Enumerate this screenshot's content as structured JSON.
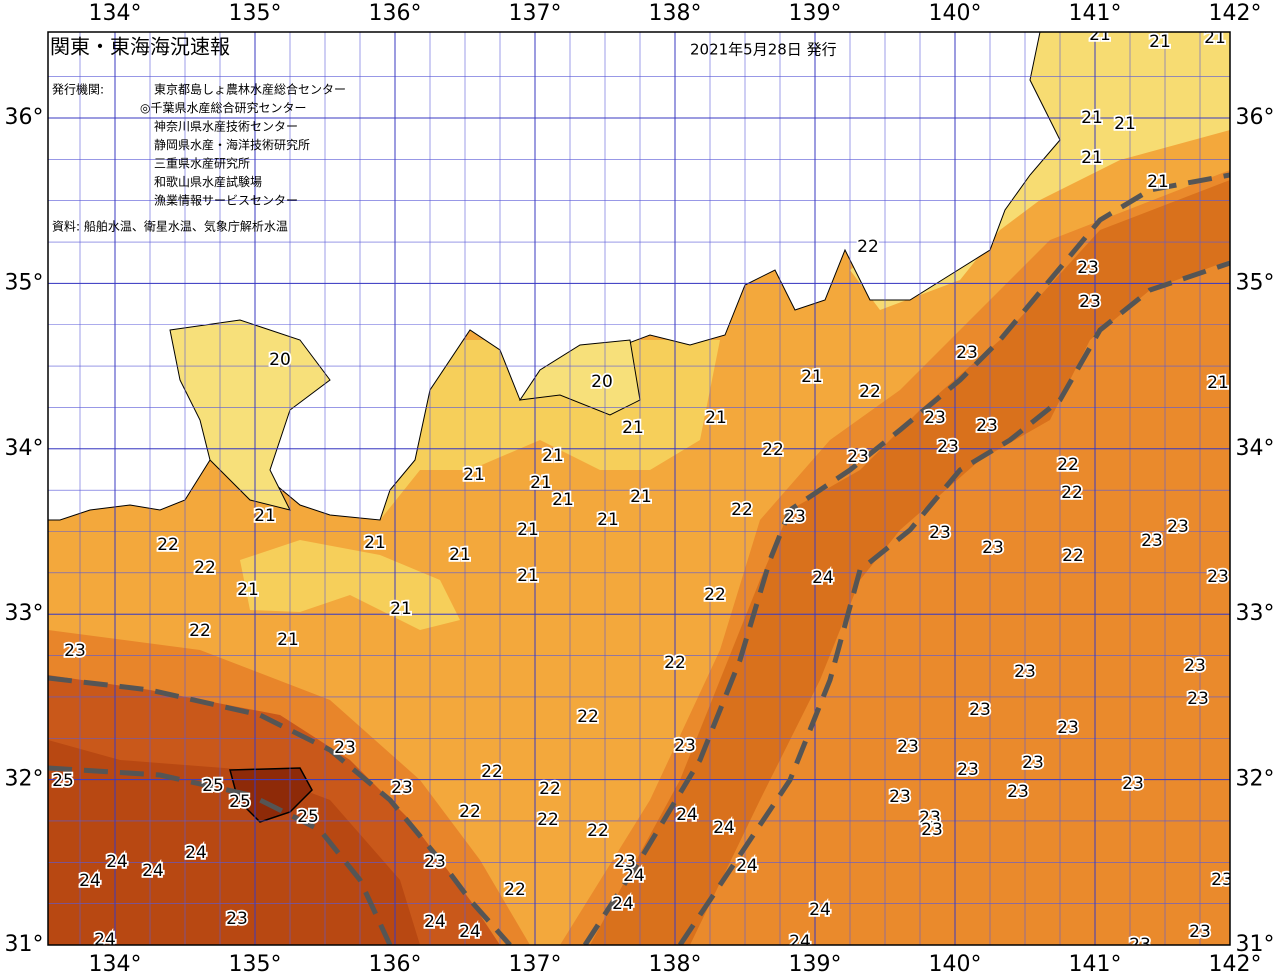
{
  "header": {
    "title": "関東・東海海況速報",
    "date": "2021年5月28日 発行",
    "issuer_label": "発行機関:",
    "issuers": [
      "東京都島しょ農林水産総合センター",
      "◎千葉県水産総合研究センター",
      "神奈川県水産技術センター",
      "静岡県水産・海洋技術研究所",
      "三重県水産研究所",
      "和歌山県水産試験場",
      "漁業情報サービスセンター"
    ],
    "sources": "資料: 船舶水温、衛星水温、気象庁解析水温"
  },
  "map": {
    "lon_ticks": [
      {
        "value": 134,
        "label": "134°"
      },
      {
        "value": 135,
        "label": "135°"
      },
      {
        "value": 136,
        "label": "136°"
      },
      {
        "value": 137,
        "label": "137°"
      },
      {
        "value": 138,
        "label": "138°"
      },
      {
        "value": 139,
        "label": "139°"
      },
      {
        "value": 140,
        "label": "140°"
      },
      {
        "value": 141,
        "label": "141°"
      },
      {
        "value": 142,
        "label": "142°"
      }
    ],
    "lat_ticks": [
      {
        "value": 36,
        "label": "36°"
      },
      {
        "value": 35,
        "label": "35°"
      },
      {
        "value": 34,
        "label": "34°"
      },
      {
        "value": 33,
        "label": "33°"
      },
      {
        "value": 32,
        "label": "32°"
      },
      {
        "value": 31,
        "label": "31°"
      }
    ],
    "contour_labels": [
      21,
      21,
      21,
      21,
      21,
      21,
      21,
      22,
      23,
      23,
      23,
      21,
      22,
      21,
      20,
      20,
      21,
      21,
      22,
      23,
      23,
      23,
      23,
      22,
      22,
      21,
      21,
      21,
      21,
      21,
      21,
      21,
      22,
      23,
      23,
      23,
      22,
      23,
      23,
      23,
      21,
      21,
      21,
      22,
      22,
      21,
      21,
      24,
      22,
      21,
      22,
      21,
      23,
      22,
      23,
      23,
      23,
      23,
      22,
      23,
      23,
      23,
      23,
      23,
      23,
      22,
      25,
      25,
      23,
      22,
      23,
      23,
      23,
      25,
      25,
      22,
      22,
      23,
      23,
      22,
      24,
      24,
      24,
      24,
      24,
      23,
      23,
      24,
      24,
      24,
      22,
      24,
      23,
      24,
      23,
      24,
      24,
      24,
      24,
      23,
      23
    ]
  }
}
